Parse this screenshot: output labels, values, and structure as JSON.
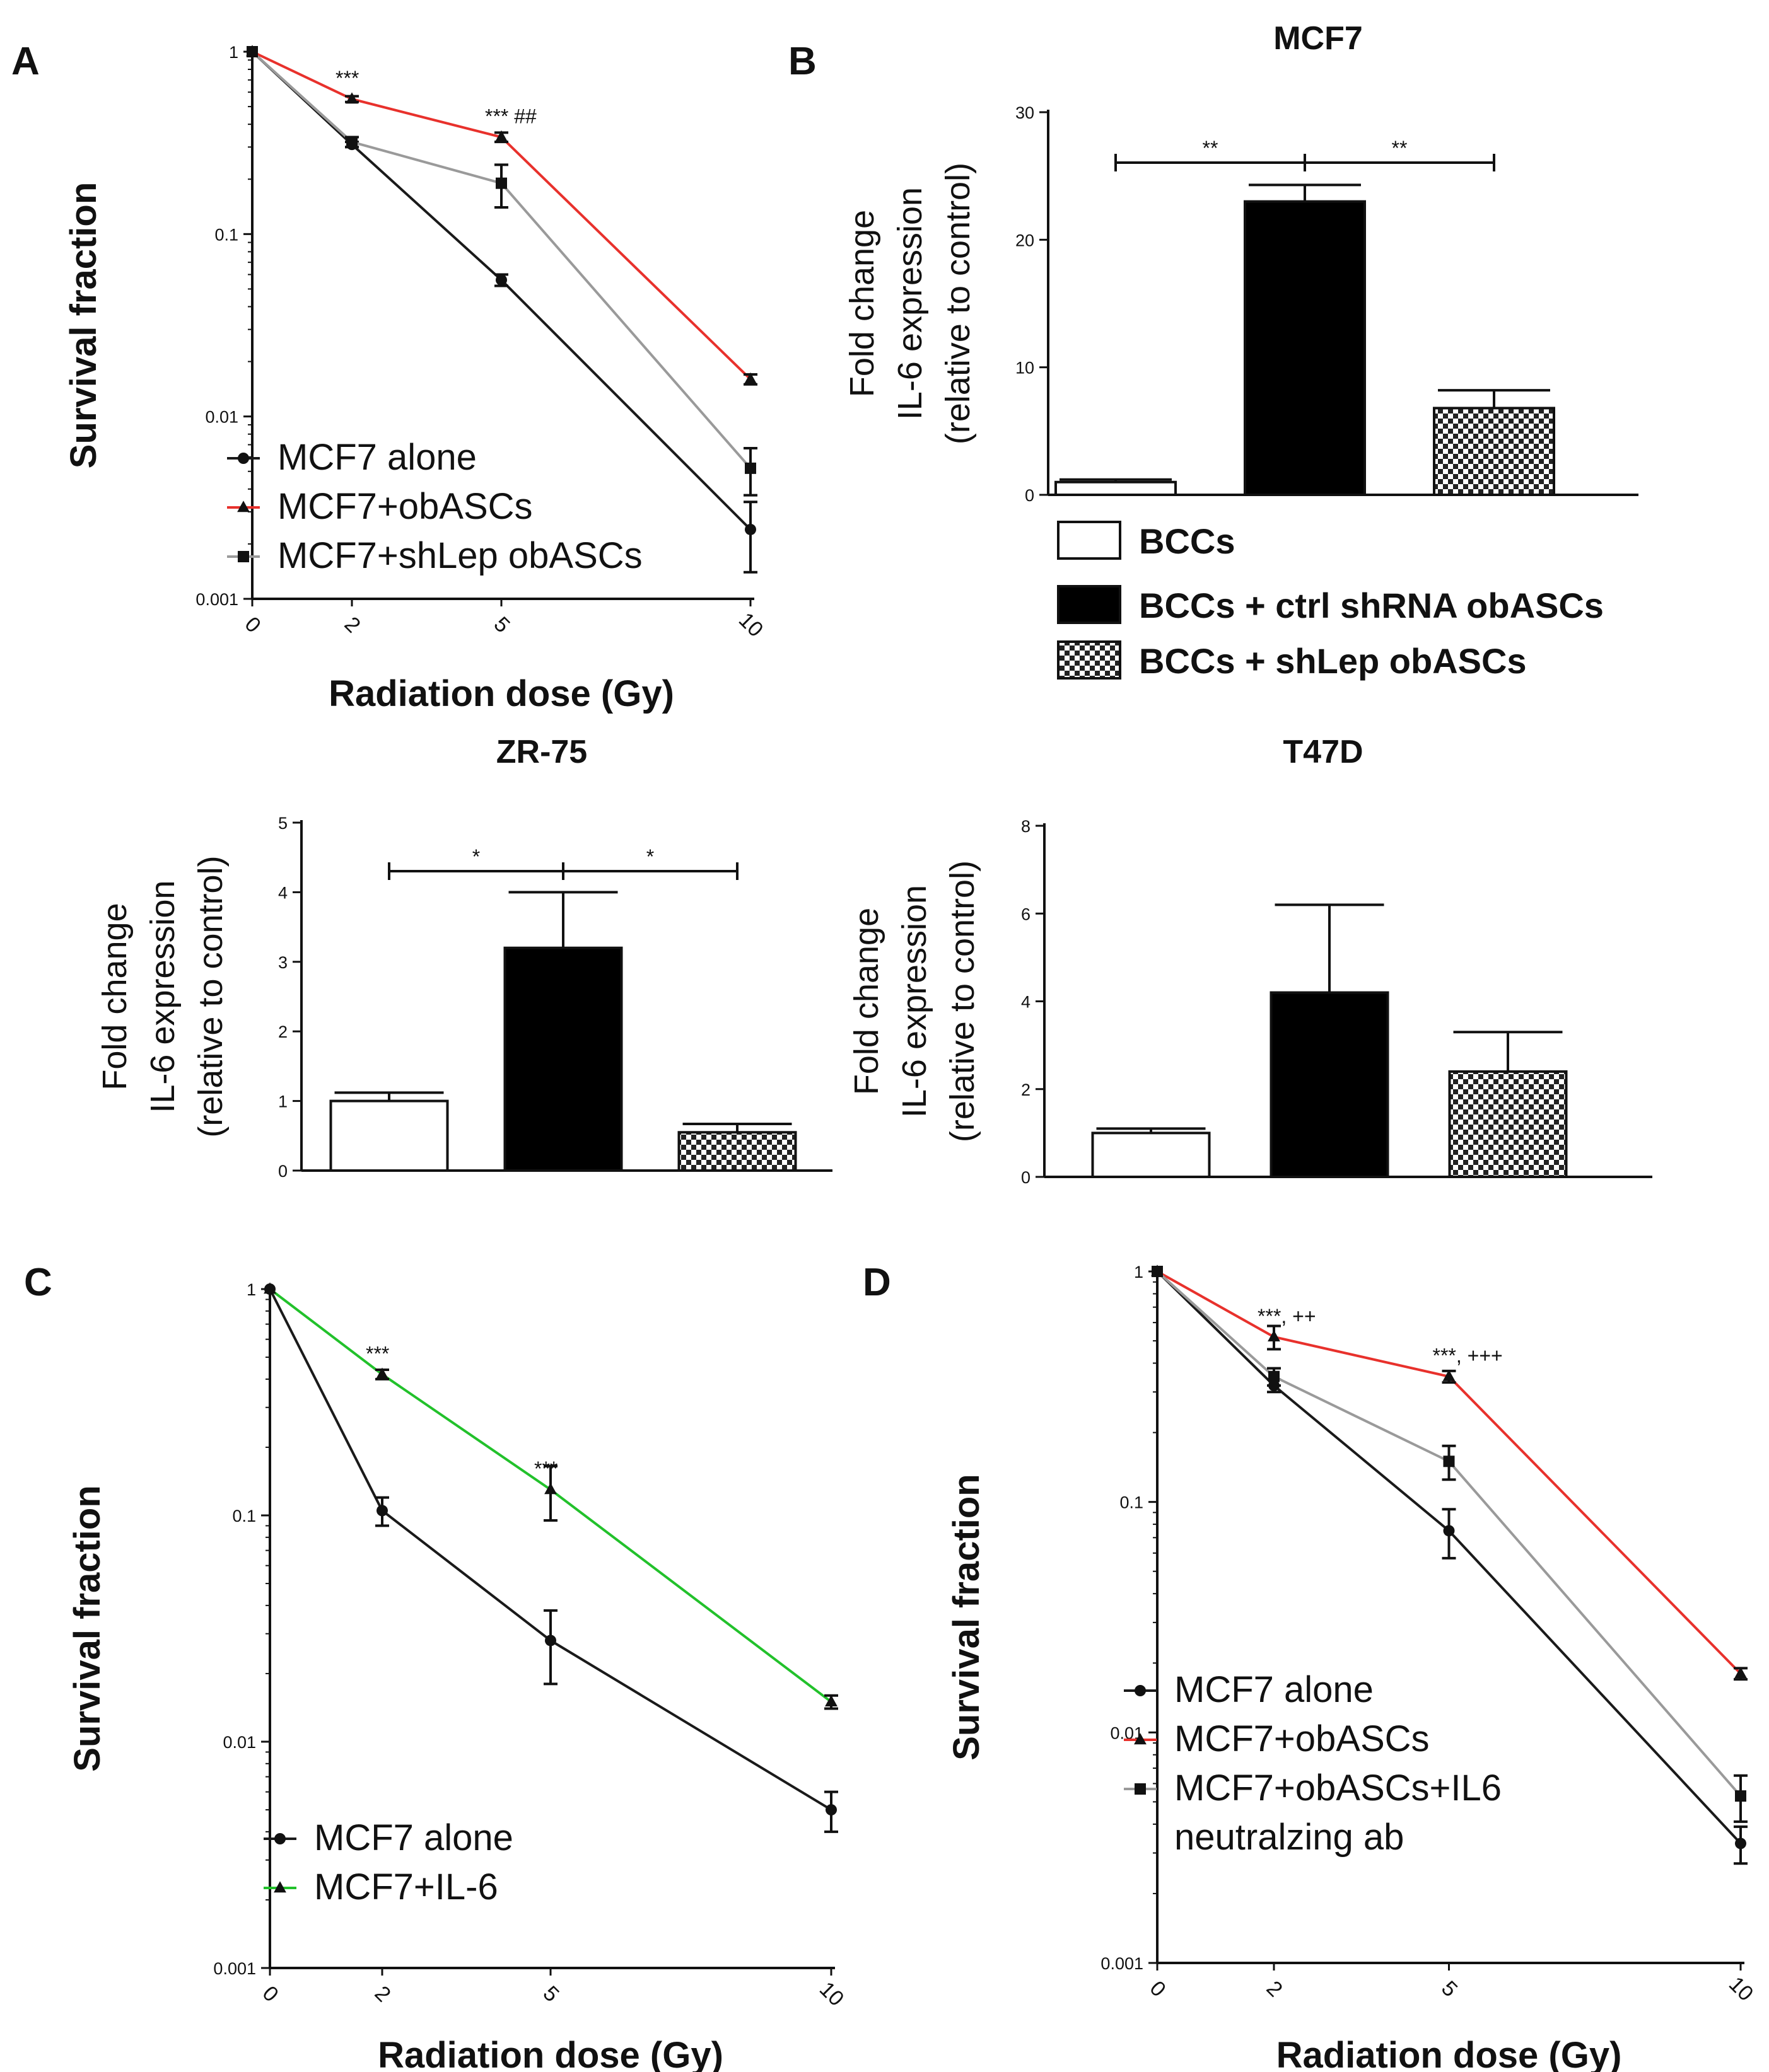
{
  "figure": {
    "panels": [
      "A",
      "B",
      "C",
      "D"
    ]
  },
  "chart_data": [
    {
      "id": "A",
      "type": "line",
      "title": "",
      "xlabel": "Radiation dose (Gy)",
      "ylabel": "Survival fraction",
      "yscale": "log",
      "ylim": [
        0.001,
        1
      ],
      "yticks": [
        "1",
        "0.1",
        "0.01",
        "0.001"
      ],
      "xticks": [
        "0",
        "2",
        "5",
        "10"
      ],
      "x": [
        0,
        2,
        5,
        10
      ],
      "series": [
        {
          "name": "MCF7 alone",
          "color": "#1a1a1a",
          "marker": "circle",
          "values": [
            1,
            0.31,
            0.056,
            0.0024
          ],
          "errors": [
            0,
            0.01,
            0.004,
            0.001
          ]
        },
        {
          "name": "MCF7+obASCs",
          "color": "#e8312c",
          "marker": "triangle",
          "values": [
            1,
            0.55,
            0.34,
            0.016
          ],
          "errors": [
            0,
            0.02,
            0.02,
            0.001
          ]
        },
        {
          "name": "MCF7+shLep obASCs",
          "color": "#9a9a9a",
          "marker": "square",
          "values": [
            1,
            0.32,
            0.19,
            0.0052
          ],
          "errors": [
            0,
            0.02,
            0.05,
            0.0015
          ]
        }
      ],
      "annotations": [
        {
          "x": 2,
          "y": 0.55,
          "text": "***"
        },
        {
          "x": 5,
          "y": 0.34,
          "text": "*** ##"
        }
      ]
    },
    {
      "id": "B-MCF7",
      "type": "bar",
      "title": "MCF7",
      "xlabel": "",
      "ylabel": "Fold change IL-6 expression (relative to control)",
      "ylim": [
        0,
        30
      ],
      "yticks": [
        "0",
        "10",
        "20",
        "30"
      ],
      "categories": [
        "BCCs",
        "BCCs + ctrl shRNA obASCs",
        "BCCs + shLep obASCs"
      ],
      "values": [
        1.0,
        23.0,
        6.8
      ],
      "errors": [
        0.2,
        1.3,
        1.4
      ],
      "significance": [
        "**",
        "**"
      ]
    },
    {
      "id": "B-ZR-75",
      "type": "bar",
      "title": "ZR-75",
      "xlabel": "",
      "ylabel": "Fold change IL-6 expression (relative to control)",
      "ylim": [
        0,
        5
      ],
      "yticks": [
        "0",
        "1",
        "2",
        "3",
        "4",
        "5"
      ],
      "categories": [
        "BCCs",
        "BCCs + ctrl shRNA obASCs",
        "BCCs + shLep obASCs"
      ],
      "values": [
        1.0,
        3.2,
        0.55
      ],
      "errors": [
        0.12,
        0.8,
        0.12
      ],
      "significance": [
        "*",
        "*"
      ]
    },
    {
      "id": "B-T47D",
      "type": "bar",
      "title": "T47D",
      "xlabel": "",
      "ylabel": "Fold change IL-6 expression (relative to control)",
      "ylim": [
        0,
        8
      ],
      "yticks": [
        "0",
        "2",
        "4",
        "6",
        "8"
      ],
      "categories": [
        "BCCs",
        "BCCs + ctrl shRNA obASCs",
        "BCCs + shLep obASCs"
      ],
      "values": [
        1.0,
        4.2,
        2.4
      ],
      "errors": [
        0.1,
        2.0,
        0.9
      ],
      "significance": []
    },
    {
      "id": "C",
      "type": "line",
      "title": "",
      "xlabel": "Radiation dose (Gy)",
      "ylabel": "Survival fraction",
      "yscale": "log",
      "ylim": [
        0.001,
        1
      ],
      "yticks": [
        "1",
        "0.1",
        "0.01",
        "0.001"
      ],
      "xticks": [
        "0",
        "2",
        "5",
        "10"
      ],
      "x": [
        0,
        2,
        5,
        10
      ],
      "series": [
        {
          "name": "MCF7 alone",
          "color": "#1a1a1a",
          "marker": "circle",
          "values": [
            1,
            0.105,
            0.028,
            0.005
          ],
          "errors": [
            0,
            0.015,
            0.01,
            0.001
          ]
        },
        {
          "name": "MCF7+IL-6",
          "color": "#22c12b",
          "marker": "triangle",
          "values": [
            1,
            0.42,
            0.13,
            0.015
          ],
          "errors": [
            0,
            0.02,
            0.035,
            0.001
          ]
        }
      ],
      "annotations": [
        {
          "x": 2,
          "y": 0.42,
          "text": "***"
        },
        {
          "x": 5,
          "y": 0.13,
          "text": "***"
        }
      ]
    },
    {
      "id": "D",
      "type": "line",
      "title": "",
      "xlabel": "Radiation dose (Gy)",
      "ylabel": "Survival fraction",
      "yscale": "log",
      "ylim": [
        0.001,
        1
      ],
      "yticks": [
        "1",
        "0.1",
        "0.01",
        "0.001"
      ],
      "xticks": [
        "0",
        "2",
        "5",
        "10"
      ],
      "x": [
        0,
        2,
        5,
        10
      ],
      "series": [
        {
          "name": "MCF7 alone",
          "color": "#1a1a1a",
          "marker": "circle",
          "values": [
            1,
            0.32,
            0.075,
            0.0033
          ],
          "errors": [
            0,
            0.02,
            0.018,
            0.0006
          ]
        },
        {
          "name": "MCF7+obASCs",
          "color": "#e8312c",
          "marker": "triangle",
          "values": [
            1,
            0.52,
            0.35,
            0.018
          ],
          "errors": [
            0,
            0.06,
            0.02,
            0.001
          ]
        },
        {
          "name": "MCF7+obASCs+IL6 neutralzing ab",
          "legend_lines": [
            "MCF7+obASCs+IL6",
            "neutralzing ab"
          ],
          "color": "#9a9a9a",
          "marker": "square",
          "values": [
            1,
            0.35,
            0.15,
            0.0053
          ],
          "errors": [
            0,
            0.03,
            0.025,
            0.0012
          ]
        }
      ],
      "annotations": [
        {
          "x": 2,
          "y": 0.52,
          "text": "***, ++"
        },
        {
          "x": 5,
          "y": 0.35,
          "text": "***, +++"
        }
      ]
    }
  ]
}
